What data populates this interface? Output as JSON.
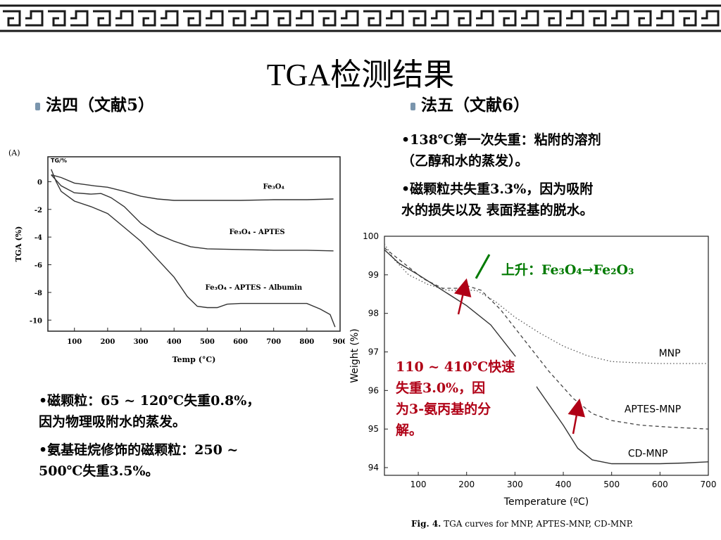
{
  "slide_title": "TGA检测结果",
  "left": {
    "heading": "法四（文献5）",
    "notes": [
      "•磁颗粒：65 ~ 120℃失重0.8%，",
      "因为物理吸附水的蒸发。",
      "•氨基硅烷修饰的磁颗粒：250 ~",
      "500℃失重3.5%。"
    ]
  },
  "right": {
    "heading": "法五（文献6）",
    "notes": [
      "•138℃第一次失重：粘附的溶剂",
      "（乙醇和水的蒸发）。",
      "•磁颗粒共失重3.3%，因为吸附",
      "水的损失以及 表面羟基的脱水。"
    ],
    "rise_label": "上升：",
    "rise_formula": "Fe₃O₄→Fe₂O₃",
    "red_note": [
      "110 ~ 410℃快速",
      "失重3.0%，因",
      "为3-氨丙基的分",
      "解。"
    ],
    "caption_bold": "Fig. 4.",
    "caption_text": " TGA curves for MNP, APTES-MNP, CD-MNP."
  },
  "colors": {
    "red": "#b00016",
    "green": "#007a00",
    "bullet": "#7a95ad"
  },
  "chart_data": [
    {
      "type": "line",
      "panel_label": "(A)",
      "corner_label": "TG/%",
      "xlabel": "Temp (°C)",
      "ylabel": "TGA (%)",
      "xlim": [
        20,
        900
      ],
      "ylim": [
        -10.8,
        1.8
      ],
      "x_ticks": [
        100,
        200,
        300,
        400,
        500,
        600,
        700,
        800,
        900
      ],
      "y_ticks": [
        0,
        -2,
        -4,
        -6,
        -8,
        -10
      ],
      "series": [
        {
          "name": "Fe₃O₄",
          "points": [
            [
              30,
              0.5
            ],
            [
              60,
              0.3
            ],
            [
              100,
              -0.1
            ],
            [
              160,
              -0.3
            ],
            [
              200,
              -0.4
            ],
            [
              250,
              -0.7
            ],
            [
              300,
              -1.05
            ],
            [
              350,
              -1.25
            ],
            [
              400,
              -1.35
            ],
            [
              500,
              -1.35
            ],
            [
              600,
              -1.35
            ],
            [
              700,
              -1.3
            ],
            [
              800,
              -1.3
            ],
            [
              880,
              -1.25
            ]
          ]
        },
        {
          "name": "Fe₃O₄ - APTES",
          "points": [
            [
              30,
              0.5
            ],
            [
              60,
              -0.3
            ],
            [
              100,
              -0.8
            ],
            [
              150,
              -0.9
            ],
            [
              180,
              -0.85
            ],
            [
              210,
              -1.15
            ],
            [
              250,
              -1.8
            ],
            [
              300,
              -3.0
            ],
            [
              350,
              -3.8
            ],
            [
              400,
              -4.3
            ],
            [
              450,
              -4.7
            ],
            [
              500,
              -4.85
            ],
            [
              600,
              -4.9
            ],
            [
              700,
              -4.95
            ],
            [
              800,
              -4.95
            ],
            [
              880,
              -5.0
            ]
          ]
        },
        {
          "name": "Fe₃O₄ - APTES - Albumin",
          "points": [
            [
              30,
              0.9
            ],
            [
              45,
              0.0
            ],
            [
              60,
              -0.7
            ],
            [
              100,
              -1.4
            ],
            [
              150,
              -1.8
            ],
            [
              200,
              -2.3
            ],
            [
              250,
              -3.3
            ],
            [
              300,
              -4.3
            ],
            [
              350,
              -5.6
            ],
            [
              400,
              -6.9
            ],
            [
              440,
              -8.3
            ],
            [
              470,
              -9.0
            ],
            [
              500,
              -9.1
            ],
            [
              530,
              -9.1
            ],
            [
              560,
              -8.85
            ],
            [
              600,
              -8.8
            ],
            [
              700,
              -8.8
            ],
            [
              760,
              -8.8
            ],
            [
              800,
              -8.8
            ],
            [
              840,
              -9.2
            ],
            [
              870,
              -9.6
            ],
            [
              885,
              -10.5
            ]
          ]
        }
      ]
    },
    {
      "type": "line",
      "xlabel": "Temperature (ºC)",
      "ylabel": "Weight (%)",
      "xlim": [
        30,
        700
      ],
      "ylim": [
        93.8,
        100
      ],
      "x_ticks": [
        100,
        200,
        300,
        400,
        500,
        600,
        700
      ],
      "y_ticks": [
        94,
        95,
        96,
        97,
        98,
        99,
        100
      ],
      "series": [
        {
          "name": "MNP",
          "style": "dotted",
          "points": [
            [
              30,
              99.8
            ],
            [
              50,
              99.4
            ],
            [
              80,
              99.0
            ],
            [
              120,
              98.75
            ],
            [
              160,
              98.6
            ],
            [
              190,
              98.6
            ],
            [
              220,
              98.6
            ],
            [
              260,
              98.3
            ],
            [
              300,
              97.9
            ],
            [
              350,
              97.5
            ],
            [
              400,
              97.15
            ],
            [
              450,
              96.9
            ],
            [
              500,
              96.75
            ],
            [
              550,
              96.72
            ],
            [
              600,
              96.7
            ],
            [
              650,
              96.7
            ],
            [
              700,
              96.7
            ]
          ]
        },
        {
          "name": "APTES-MNP",
          "style": "dashed",
          "points": [
            [
              30,
              99.7
            ],
            [
              70,
              99.3
            ],
            [
              110,
              98.9
            ],
            [
              150,
              98.65
            ],
            [
              180,
              98.65
            ],
            [
              200,
              98.72
            ],
            [
              230,
              98.6
            ],
            [
              270,
              98.1
            ],
            [
              320,
              97.3
            ],
            [
              370,
              96.5
            ],
            [
              420,
              95.8
            ],
            [
              460,
              95.4
            ],
            [
              500,
              95.22
            ],
            [
              560,
              95.1
            ],
            [
              620,
              95.05
            ],
            [
              700,
              95.0
            ]
          ]
        },
        {
          "name": "CD-MNP",
          "style": "solid",
          "points": [
            [
              30,
              99.65
            ],
            [
              60,
              99.3
            ],
            [
              100,
              99.0
            ],
            [
              150,
              98.6
            ],
            [
              200,
              98.2
            ],
            [
              250,
              97.7
            ],
            [
              300,
              96.9
            ],
            [
              350,
              96.0
            ],
            [
              400,
              95.1
            ],
            [
              430,
              94.5
            ],
            [
              460,
              94.2
            ],
            [
              500,
              94.1
            ],
            [
              550,
              94.1
            ],
            [
              600,
              94.1
            ],
            [
              650,
              94.12
            ],
            [
              700,
              94.15
            ]
          ]
        }
      ]
    }
  ]
}
